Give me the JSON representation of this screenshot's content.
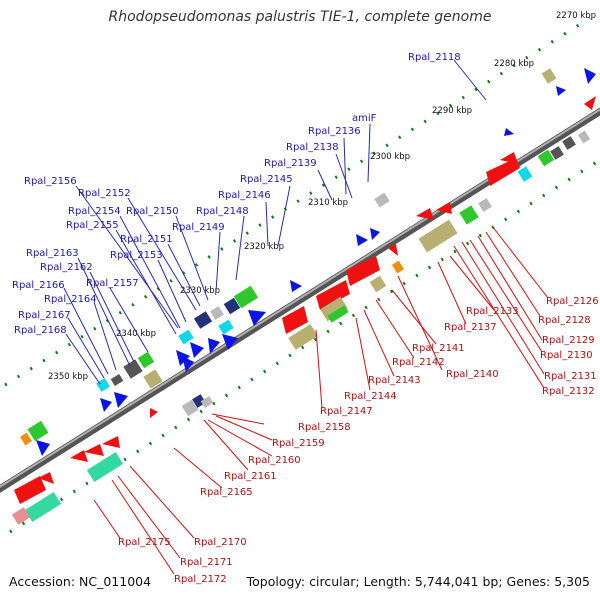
{
  "title": "Rhodopseudomonas palustris TIE-1, complete genome",
  "accession": "Accession: NC_011004",
  "topology": "Topology: circular; Length: 5,744,041 bp; Genes: 5,305",
  "colors": {
    "backbone": "#8a8a8a",
    "tick": "#0c7a10",
    "forward_label": "#1a1aaa",
    "reverse_label": "#aa1111",
    "gene_blue": "#0a14e6",
    "gene_red": "#ee1111",
    "gene_green": "#2ec82e",
    "gene_olive": "#b8b070",
    "gene_cyan": "#11d8e8",
    "gene_gray": "#b9b9b9",
    "gene_darkgray": "#555555",
    "gene_orange": "#f0900a",
    "gene_navy": "#22337a",
    "gene_pink": "#e89090",
    "gene_teal": "#33d9a0"
  },
  "kbp_markers": [
    "2270 kbp",
    "2280 kbp",
    "2290 kbp",
    "2300 kbp",
    "2310 kbp",
    "2320 kbp",
    "2330 kbp",
    "2340 kbp",
    "2350 kbp"
  ],
  "forward_labels": [
    "Rpal_2118",
    "amiF",
    "Rpal_2136",
    "Rpal_2138",
    "Rpal_2139",
    "Rpal_2145",
    "Rpal_2146",
    "Rpal_2148",
    "Rpal_2149",
    "Rpal_2150",
    "Rpal_2151",
    "Rpal_2152",
    "Rpal_2153",
    "Rpal_2154",
    "Rpal_2155",
    "Rpal_2156",
    "Rpal_2157",
    "Rpal_2162",
    "Rpal_2163",
    "Rpal_2164",
    "Rpal_2166",
    "Rpal_2167",
    "Rpal_2168"
  ],
  "reverse_labels": [
    "Rpal_2126",
    "Rpal_2128",
    "Rpal_2129",
    "Rpal_2130",
    "Rpal_2131",
    "Rpal_2132",
    "Rpal_2133",
    "Rpal_2137",
    "Rpal_2140",
    "Rpal_2141",
    "Rpal_2142",
    "Rpal_2143",
    "Rpal_2144",
    "Rpal_2147",
    "Rpal_2158",
    "Rpal_2159",
    "Rpal_2160",
    "Rpal_2161",
    "Rpal_2165",
    "Rpal_2170",
    "Rpal_2171",
    "Rpal_2172",
    "Rpal_2175"
  ]
}
